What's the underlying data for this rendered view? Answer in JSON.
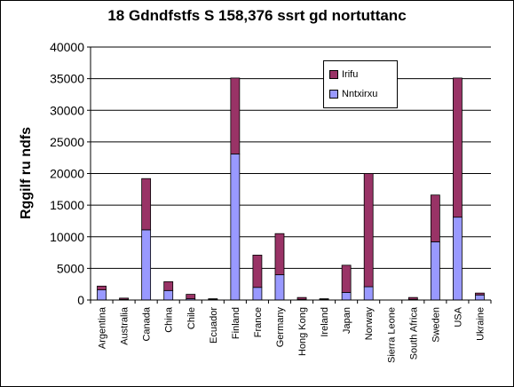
{
  "chart_data": {
    "type": "bar",
    "stacked": true,
    "title": "18 Gdndfstfs S 158,376 ssrt gd nortuttanc",
    "xlabel": "",
    "ylabel": "Rggilf ru ndfs",
    "ylim": [
      0,
      40000
    ],
    "yticks": [
      "0",
      "5000",
      "10000",
      "15000",
      "20000",
      "25000",
      "30000",
      "35000",
      "40000"
    ],
    "grid": true,
    "legend_position": "top-right",
    "categories": [
      "Argentina",
      "Australia",
      "Canada",
      "China",
      "Chile",
      "Ecuador",
      "Finland",
      "France",
      "Germany",
      "Hong Kong",
      "Ireland",
      "Japan",
      "Norway",
      "Sierra Leone",
      "South Africa",
      "Sweden",
      "USA",
      "Ukraine"
    ],
    "series": [
      {
        "name": "Nntxirxu",
        "color": "#9999ff",
        "values": [
          1600,
          100,
          11100,
          1500,
          200,
          100,
          23100,
          2000,
          4000,
          100,
          100,
          1200,
          2100,
          0,
          100,
          9200,
          13100,
          800
        ]
      },
      {
        "name": "Irifu",
        "color": "#993366",
        "values": [
          600,
          200,
          8100,
          1400,
          700,
          100,
          12000,
          5100,
          6500,
          300,
          100,
          4300,
          17900,
          0,
          300,
          7400,
          22000,
          300
        ]
      }
    ]
  }
}
